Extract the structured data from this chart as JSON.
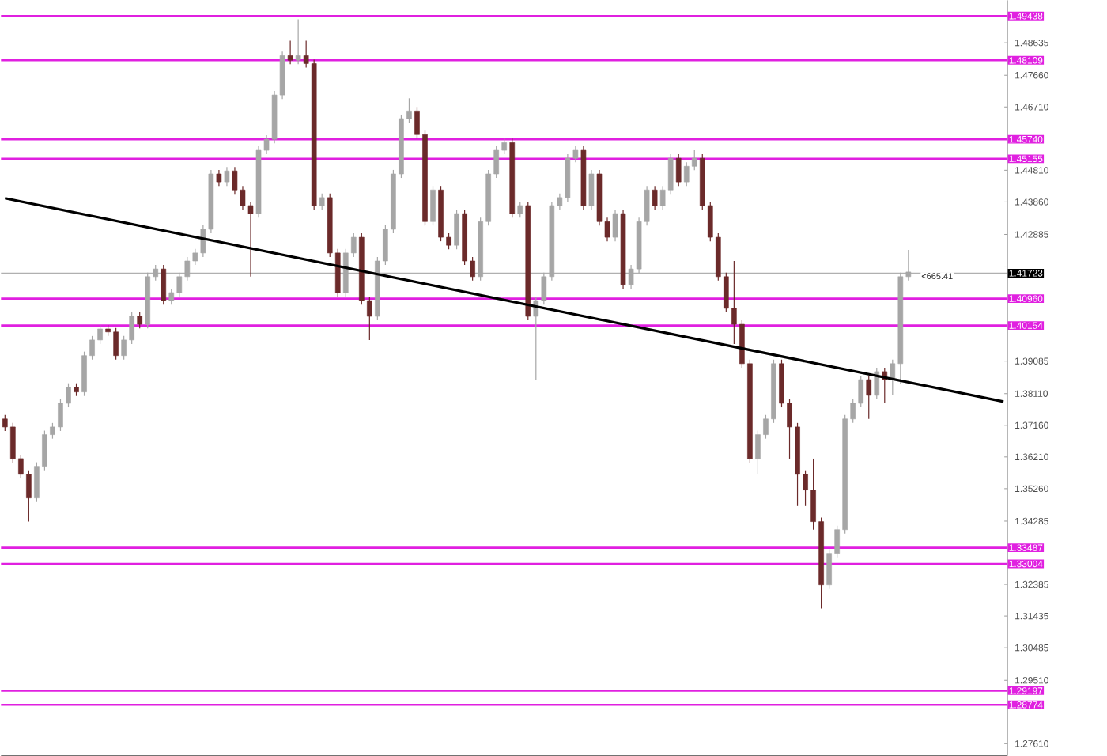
{
  "chart_data": {
    "type": "candlestick",
    "categories": [
      null,
      null,
      null,
      null,
      null,
      null,
      null,
      null,
      null,
      null,
      null,
      null,
      null,
      null,
      null,
      null,
      null,
      null,
      null,
      null,
      null,
      null,
      null,
      null,
      null,
      null,
      null,
      null,
      null,
      null,
      null,
      null,
      null,
      null,
      null,
      null,
      null,
      null,
      null,
      null,
      null,
      null,
      null,
      null,
      null,
      null,
      null,
      null,
      null,
      null,
      null,
      null,
      null,
      null,
      null,
      null,
      null,
      null,
      null,
      null,
      null,
      null,
      null,
      null,
      null,
      null,
      null,
      null,
      null,
      null,
      null,
      null,
      null,
      null,
      null,
      null,
      null,
      null,
      null,
      null,
      null,
      null,
      null,
      null,
      null,
      null,
      null,
      null,
      null,
      null,
      null,
      null,
      null,
      null,
      null,
      null,
      null,
      null,
      null,
      null,
      null,
      null,
      null,
      null,
      null,
      null,
      null,
      null,
      null,
      null,
      null,
      null,
      null,
      null,
      null,
      null,
      null,
      null,
      null,
      null,
      null,
      null,
      null,
      null,
      null,
      null,
      null
    ],
    "ohlc": [
      [
        1.3735,
        1.3747,
        1.3699,
        1.3711
      ],
      [
        1.3711,
        1.3723,
        1.3604,
        1.3616
      ],
      [
        1.3616,
        1.3628,
        1.3557,
        1.3569
      ],
      [
        1.3569,
        1.3581,
        1.3427,
        1.3498
      ],
      [
        1.3498,
        1.3605,
        1.3486,
        1.3593
      ],
      [
        1.3593,
        1.37,
        1.3581,
        1.3688
      ],
      [
        1.3688,
        1.3723,
        1.3676,
        1.3711
      ],
      [
        1.3711,
        1.3794,
        1.3699,
        1.3782
      ],
      [
        1.3782,
        1.3842,
        1.377,
        1.383
      ],
      [
        1.383,
        1.3842,
        1.3804,
        1.3816
      ],
      [
        1.3816,
        1.3937,
        1.3804,
        1.3925
      ],
      [
        1.3925,
        1.3984,
        1.3913,
        1.3972
      ],
      [
        1.3972,
        1.4017,
        1.396,
        1.4005
      ],
      [
        1.4005,
        1.4017,
        1.3984,
        1.3996
      ],
      [
        1.3996,
        1.4008,
        1.3913,
        1.3925
      ],
      [
        1.3925,
        1.3984,
        1.3913,
        1.3972
      ],
      [
        1.3972,
        1.4055,
        1.396,
        1.4043
      ],
      [
        1.4043,
        1.4055,
        1.4007,
        1.4019
      ],
      [
        1.4019,
        1.4174,
        1.4007,
        1.4162
      ],
      [
        1.4162,
        1.4197,
        1.415,
        1.4185
      ],
      [
        1.4185,
        1.4197,
        1.4078,
        1.409
      ],
      [
        1.409,
        1.4126,
        1.4078,
        1.4114
      ],
      [
        1.4114,
        1.4174,
        1.4102,
        1.4162
      ],
      [
        1.4162,
        1.4221,
        1.415,
        1.4209
      ],
      [
        1.4209,
        1.4245,
        1.4197,
        1.4233
      ],
      [
        1.4233,
        1.4316,
        1.4221,
        1.4304
      ],
      [
        1.4304,
        1.4482,
        1.4292,
        1.447
      ],
      [
        1.447,
        1.4482,
        1.4434,
        1.4446
      ],
      [
        1.4446,
        1.4491,
        1.4434,
        1.4479
      ],
      [
        1.4479,
        1.4491,
        1.441,
        1.4422
      ],
      [
        1.4422,
        1.4434,
        1.4363,
        1.4375
      ],
      [
        1.4375,
        1.4387,
        1.4162,
        1.4351
      ],
      [
        1.4351,
        1.4553,
        1.4339,
        1.4541
      ],
      [
        1.4541,
        1.4586,
        1.4529,
        1.4574
      ],
      [
        1.4574,
        1.4719,
        1.4562,
        1.4707
      ],
      [
        1.4707,
        1.4837,
        1.4695,
        1.4825
      ],
      [
        1.4825,
        1.487,
        1.4799,
        1.4811
      ],
      [
        1.4811,
        1.4934,
        1.4799,
        1.4825
      ],
      [
        1.4825,
        1.487,
        1.4789,
        1.4801
      ],
      [
        1.4801,
        1.4813,
        1.4363,
        1.4375
      ],
      [
        1.4375,
        1.4411,
        1.4363,
        1.4399
      ],
      [
        1.4399,
        1.4411,
        1.4221,
        1.4233
      ],
      [
        1.4233,
        1.4245,
        1.4102,
        1.4114
      ],
      [
        1.4114,
        1.4245,
        1.4102,
        1.4233
      ],
      [
        1.4233,
        1.4292,
        1.4221,
        1.428
      ],
      [
        1.428,
        1.4292,
        1.4078,
        1.409
      ],
      [
        1.409,
        1.4102,
        1.3972,
        1.4043
      ],
      [
        1.4043,
        1.4221,
        1.4031,
        1.4209
      ],
      [
        1.4209,
        1.4316,
        1.4197,
        1.4304
      ],
      [
        1.4304,
        1.4482,
        1.4292,
        1.447
      ],
      [
        1.447,
        1.4648,
        1.4458,
        1.4636
      ],
      [
        1.4636,
        1.4697,
        1.4624,
        1.4659
      ],
      [
        1.4659,
        1.4671,
        1.4576,
        1.4588
      ],
      [
        1.4588,
        1.46,
        1.4315,
        1.4327
      ],
      [
        1.4327,
        1.4434,
        1.4315,
        1.4422
      ],
      [
        1.4422,
        1.4434,
        1.4268,
        1.428
      ],
      [
        1.428,
        1.4292,
        1.4244,
        1.4256
      ],
      [
        1.4256,
        1.4363,
        1.4244,
        1.4351
      ],
      [
        1.4351,
        1.4363,
        1.4197,
        1.4209
      ],
      [
        1.4209,
        1.4221,
        1.415,
        1.4162
      ],
      [
        1.4162,
        1.4339,
        1.415,
        1.4327
      ],
      [
        1.4327,
        1.4482,
        1.4315,
        1.447
      ],
      [
        1.447,
        1.4553,
        1.4458,
        1.4541
      ],
      [
        1.4541,
        1.4576,
        1.4529,
        1.4564
      ],
      [
        1.4564,
        1.4576,
        1.4339,
        1.4351
      ],
      [
        1.4351,
        1.4387,
        1.4339,
        1.4375
      ],
      [
        1.4375,
        1.4387,
        1.4031,
        1.4043
      ],
      [
        1.4043,
        1.4102,
        1.3853,
        1.409
      ],
      [
        1.409,
        1.4174,
        1.4078,
        1.4162
      ],
      [
        1.4162,
        1.4387,
        1.415,
        1.4375
      ],
      [
        1.4375,
        1.4411,
        1.4363,
        1.4399
      ],
      [
        1.4399,
        1.4529,
        1.4387,
        1.4517
      ],
      [
        1.4517,
        1.4553,
        1.4505,
        1.4541
      ],
      [
        1.4541,
        1.4553,
        1.4363,
        1.4375
      ],
      [
        1.4375,
        1.4482,
        1.4363,
        1.447
      ],
      [
        1.447,
        1.4482,
        1.4315,
        1.4327
      ],
      [
        1.4327,
        1.4339,
        1.4268,
        1.428
      ],
      [
        1.428,
        1.4363,
        1.4268,
        1.4351
      ],
      [
        1.4351,
        1.4363,
        1.4126,
        1.4138
      ],
      [
        1.4138,
        1.4197,
        1.4126,
        1.4185
      ],
      [
        1.4185,
        1.4339,
        1.4173,
        1.4327
      ],
      [
        1.4327,
        1.4434,
        1.4315,
        1.4422
      ],
      [
        1.4422,
        1.4434,
        1.4363,
        1.4375
      ],
      [
        1.4375,
        1.4434,
        1.4363,
        1.4422
      ],
      [
        1.4422,
        1.4529,
        1.441,
        1.4517
      ],
      [
        1.4517,
        1.4529,
        1.4434,
        1.4446
      ],
      [
        1.4446,
        1.4505,
        1.4434,
        1.4493
      ],
      [
        1.4493,
        1.4541,
        1.4481,
        1.4517
      ],
      [
        1.4517,
        1.4529,
        1.4363,
        1.4375
      ],
      [
        1.4375,
        1.4387,
        1.4268,
        1.428
      ],
      [
        1.428,
        1.4292,
        1.415,
        1.4162
      ],
      [
        1.4162,
        1.4174,
        1.4055,
        1.4067
      ],
      [
        1.4067,
        1.4209,
        1.396,
        1.4019
      ],
      [
        1.4019,
        1.4031,
        1.3889,
        1.3901
      ],
      [
        1.3901,
        1.3913,
        1.3604,
        1.3616
      ],
      [
        1.3616,
        1.37,
        1.3569,
        1.3688
      ],
      [
        1.3688,
        1.3747,
        1.3676,
        1.3735
      ],
      [
        1.3735,
        1.3913,
        1.3723,
        1.3901
      ],
      [
        1.3901,
        1.3913,
        1.377,
        1.3782
      ],
      [
        1.3782,
        1.3794,
        1.3616,
        1.3711
      ],
      [
        1.3711,
        1.3723,
        1.3474,
        1.3569
      ],
      [
        1.3569,
        1.3581,
        1.3474,
        1.3522
      ],
      [
        1.3522,
        1.3616,
        1.3403,
        1.3427
      ],
      [
        1.3427,
        1.3439,
        1.3166,
        1.3237
      ],
      [
        1.3237,
        1.3344,
        1.3225,
        1.3332
      ],
      [
        1.3332,
        1.3415,
        1.332,
        1.3403
      ],
      [
        1.3403,
        1.3747,
        1.3391,
        1.3735
      ],
      [
        1.3735,
        1.3794,
        1.3723,
        1.3782
      ],
      [
        1.3782,
        1.3865,
        1.377,
        1.3853
      ],
      [
        1.3853,
        1.3865,
        1.3735,
        1.3806
      ],
      [
        1.3806,
        1.3889,
        1.3794,
        1.3877
      ],
      [
        1.3877,
        1.3889,
        1.3782,
        1.3853
      ],
      [
        1.3853,
        1.3913,
        1.3806,
        1.3901
      ],
      [
        1.3901,
        1.4174,
        1.3841,
        1.4162
      ],
      [
        1.4162,
        1.4242,
        1.415,
        1.4176
      ],
      null,
      null,
      null,
      null,
      null,
      null,
      null,
      null,
      null,
      null,
      null,
      null
    ],
    "colors": [
      "#6b2a2a",
      "#6b2a2a",
      "#6b2a2a",
      "#6b2a2a",
      "#a6a6a6",
      "#a6a6a6",
      "#a6a6a6",
      "#a6a6a6",
      "#a6a6a6",
      "#6b2a2a",
      "#a6a6a6",
      "#a6a6a6",
      "#a6a6a6",
      "#6b2a2a",
      "#6b2a2a",
      "#a6a6a6",
      "#a6a6a6",
      "#6b2a2a",
      "#a6a6a6",
      "#a6a6a6",
      "#6b2a2a",
      "#a6a6a6",
      "#a6a6a6",
      "#a6a6a6",
      "#a6a6a6",
      "#a6a6a6",
      "#a6a6a6",
      "#6b2a2a",
      "#a6a6a6",
      "#6b2a2a",
      "#6b2a2a",
      "#6b2a2a",
      "#a6a6a6",
      "#a6a6a6",
      "#a6a6a6",
      "#a6a6a6",
      "#6b2a2a",
      "#a6a6a6",
      "#6b2a2a",
      "#6b2a2a",
      "#a6a6a6",
      "#6b2a2a",
      "#6b2a2a",
      "#a6a6a6",
      "#a6a6a6",
      "#6b2a2a",
      "#6b2a2a",
      "#a6a6a6",
      "#a6a6a6",
      "#a6a6a6",
      "#a6a6a6",
      "#a6a6a6",
      "#6b2a2a",
      "#6b2a2a",
      "#a6a6a6",
      "#6b2a2a",
      "#6b2a2a",
      "#a6a6a6",
      "#6b2a2a",
      "#6b2a2a",
      "#a6a6a6",
      "#a6a6a6",
      "#a6a6a6",
      "#a6a6a6",
      "#6b2a2a",
      "#a6a6a6",
      "#6b2a2a",
      "#a6a6a6",
      "#a6a6a6",
      "#a6a6a6",
      "#a6a6a6",
      "#a6a6a6",
      "#a6a6a6",
      "#6b2a2a",
      "#a6a6a6",
      "#6b2a2a",
      "#6b2a2a",
      "#a6a6a6",
      "#6b2a2a",
      "#a6a6a6",
      "#a6a6a6",
      "#a6a6a6",
      "#6b2a2a",
      "#a6a6a6",
      "#a6a6a6",
      "#6b2a2a",
      "#a6a6a6",
      "#a6a6a6",
      "#6b2a2a",
      "#6b2a2a",
      "#6b2a2a",
      "#6b2a2a",
      "#6b2a2a",
      "#6b2a2a",
      "#6b2a2a",
      "#a6a6a6",
      "#a6a6a6",
      "#a6a6a6",
      "#6b2a2a",
      "#6b2a2a",
      "#6b2a2a",
      "#6b2a2a",
      "#6b2a2a",
      "#6b2a2a",
      "#a6a6a6",
      "#a6a6a6",
      "#a6a6a6",
      "#a6a6a6",
      "#a6a6a6",
      "#6b2a2a",
      "#a6a6a6",
      "#6b2a2a",
      "#a6a6a6",
      "#a6a6a6",
      "#a6a6a6",
      null,
      null,
      null,
      null,
      null,
      null,
      null,
      null,
      null,
      null,
      null,
      null
    ],
    "series": [
      {
        "type": "line",
        "color": "#000000",
        "values": [
          1.4397,
          null,
          null,
          null,
          null,
          null,
          null,
          null,
          null,
          null,
          null,
          null,
          null,
          null,
          null,
          null,
          null,
          null,
          null,
          null,
          null,
          null,
          null,
          null,
          null,
          null,
          null,
          null,
          null,
          null,
          null,
          null,
          null,
          null,
          null,
          null,
          null,
          null,
          null,
          null,
          null,
          null,
          null,
          null,
          null,
          null,
          null,
          null,
          null,
          null,
          null,
          null,
          null,
          null,
          null,
          null,
          null,
          null,
          null,
          null,
          null,
          null,
          null,
          null,
          null,
          null,
          null,
          null,
          null,
          null,
          null,
          null,
          null,
          null,
          null,
          null,
          null,
          null,
          null,
          null,
          null,
          null,
          null,
          null,
          null,
          null,
          null,
          null,
          null,
          null,
          null,
          null,
          null,
          null,
          null,
          null,
          null,
          null,
          null,
          null,
          null,
          null,
          null,
          null,
          null,
          null,
          null,
          null,
          null,
          null,
          null,
          null,
          null,
          null,
          null,
          null,
          null,
          null,
          null,
          null,
          null,
          null,
          null,
          null,
          null,
          null,
          1.3787
        ]
      }
    ],
    "ylim": [
      1.2725,
      1.4991
    ],
    "yticks": [
      {
        "value": 1.2761,
        "label": "1.27610"
      },
      {
        "value": 1.2951,
        "label": "1.29510"
      },
      1.30485,
      1.31435,
      1.32385,
      1.34285,
      {
        "value": 1.3526,
        "label": "1.35260"
      },
      {
        "value": 1.3621,
        "label": "1.36210"
      },
      {
        "value": 1.3716,
        "label": "1.37160"
      },
      {
        "value": 1.3811,
        "label": "1.38110"
      },
      1.39085,
      {
        "value": 1.41935,
        "label": null
      },
      1.42885,
      {
        "value": 1.4386,
        "label": "1.43860"
      },
      {
        "value": 1.4481,
        "label": "1.44810"
      },
      {
        "value": 1.4671,
        "label": "1.46710"
      },
      {
        "value": 1.4766,
        "label": "1.47660"
      },
      1.48635
    ],
    "tick_labels": "y",
    "ref_lines": [
      {
        "axis": "y",
        "value": 1.49438,
        "label": "1.49438",
        "color": "#e020e0"
      },
      {
        "axis": "y",
        "value": 1.48109,
        "label": "1.48109",
        "color": "#e020e0"
      },
      {
        "axis": "y",
        "value": 1.4574,
        "label": "1.45740",
        "color": "#e020e0"
      },
      {
        "axis": "y",
        "value": 1.45155,
        "label": "1.45155",
        "color": "#e020e0"
      },
      {
        "axis": "y",
        "value": 1.4096,
        "label": "1.40960",
        "color": "#e020e0"
      },
      {
        "axis": "y",
        "value": 1.40154,
        "label": "1.40154",
        "color": "#e020e0"
      },
      {
        "axis": "y",
        "value": 1.33487,
        "label": "1.33487",
        "color": "#e020e0"
      },
      {
        "axis": "y",
        "value": 1.33004,
        "label": "1.33004",
        "color": "#e020e0"
      },
      {
        "axis": "y",
        "value": 1.29197,
        "label": "1.29197",
        "color": "#e020e0"
      },
      {
        "axis": "y",
        "value": 1.28774,
        "label": "1.28774",
        "color": "#e020e0"
      },
      {
        "axis": "y",
        "value": 1.41723,
        "label": "1.41723",
        "color": "#b0b0b0"
      }
    ],
    "annotations": [
      "<665.41"
    ]
  }
}
